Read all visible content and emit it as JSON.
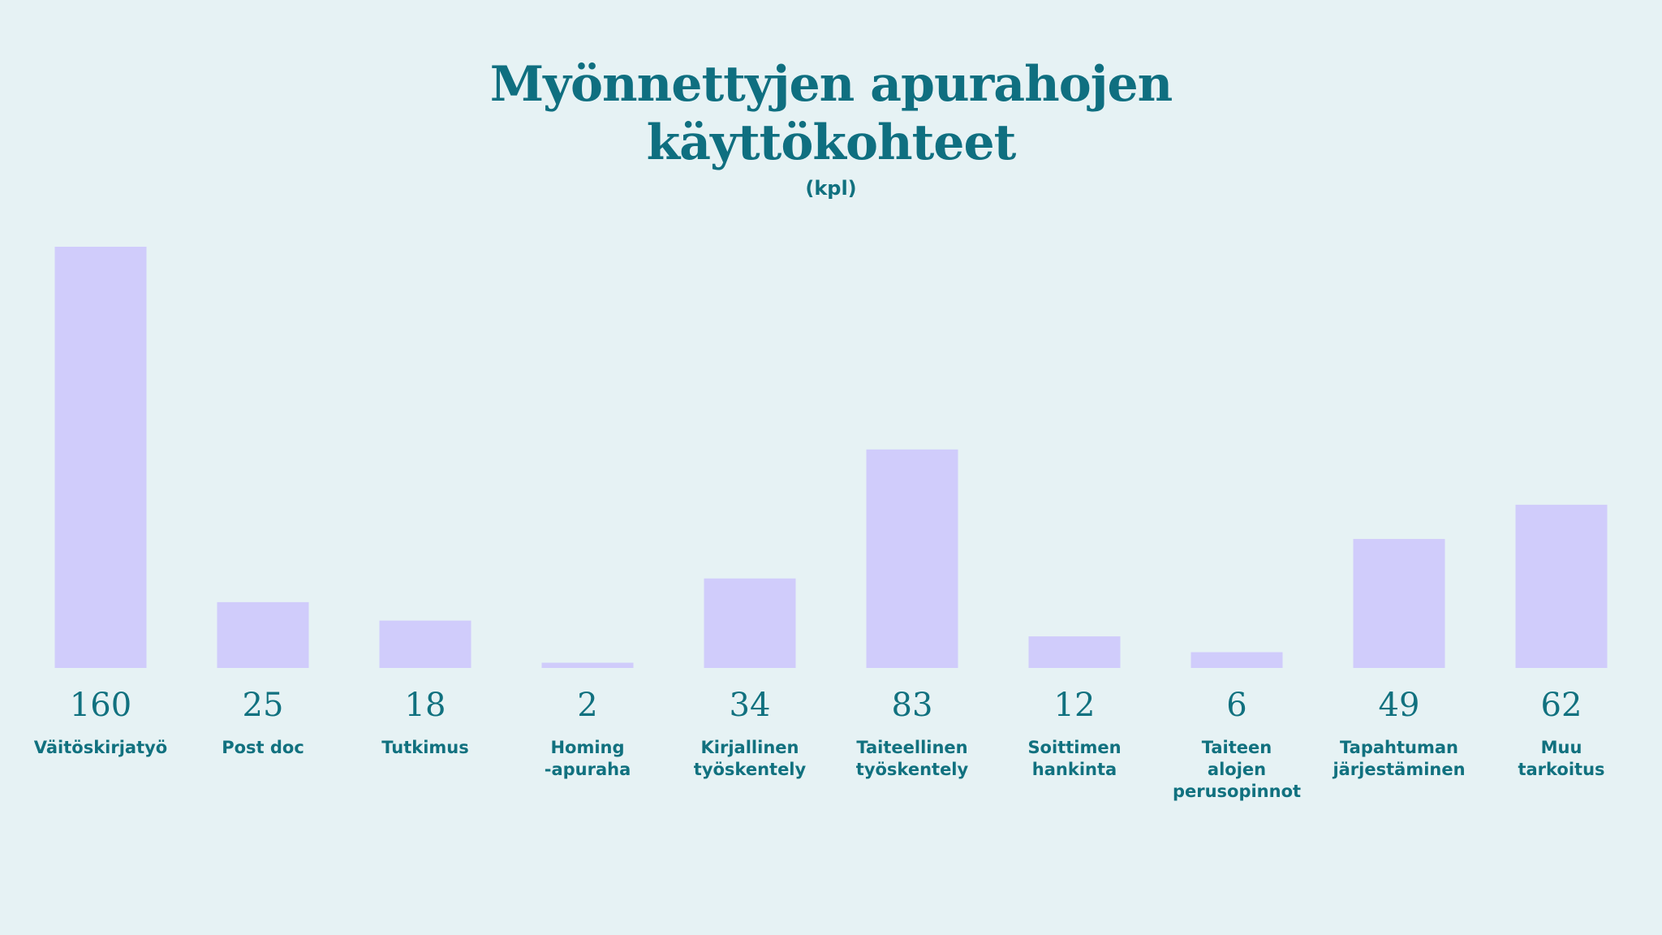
{
  "chart_data": {
    "type": "bar",
    "title": "Myönnettyjen apurahojen\nkäyttökohteet",
    "subtitle": "(kpl)",
    "categories": [
      "Väitöskirjatyö",
      "Post doc",
      "Tutkimus",
      "Homing\n-apuraha",
      "Kirjallinen\ntyöskentely",
      "Taiteellinen\ntyöskentely",
      "Soittimen\nhankinta",
      "Taiteen\nalojen\nperusopinnot",
      "Tapahtuman\njärjestäminen",
      "Muu\ntarkoitus"
    ],
    "values": [
      160,
      25,
      18,
      2,
      34,
      83,
      12,
      6,
      49,
      62
    ],
    "color": "#d0ccfb"
  }
}
